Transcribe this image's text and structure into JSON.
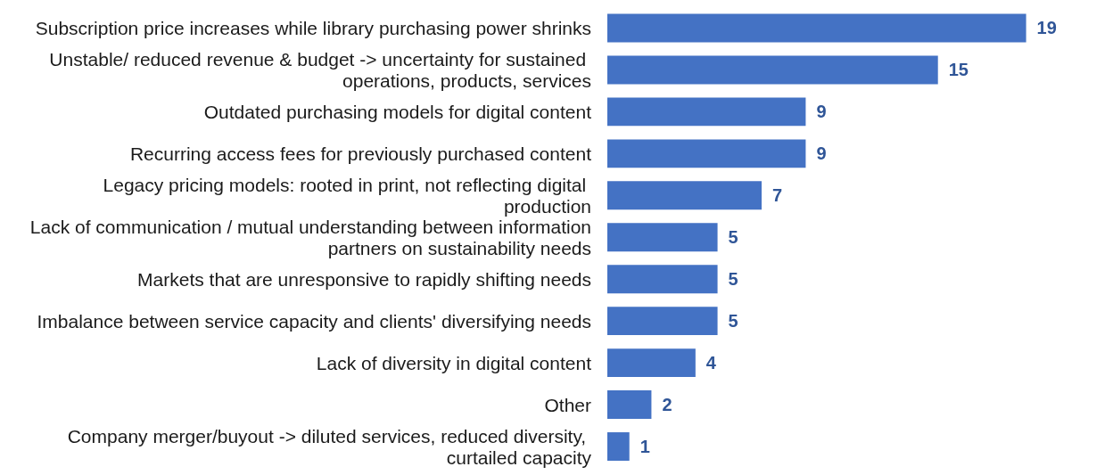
{
  "chart_data": {
    "type": "bar",
    "orientation": "horizontal",
    "color": "#4472c4",
    "data_labels": true,
    "categories": [
      "Subscription price increases while library purchasing power shrinks",
      "Unstable/ reduced revenue & budget -> uncertainty for sustained operations, products, services",
      "Outdated purchasing models for digital content",
      "Recurring access fees for previously purchased content",
      "Legacy pricing models: rooted in print, not reflecting digital production",
      "Lack of communication / mutual understanding between information partners on sustainability needs",
      "Markets that are unresponsive to rapidly shifting needs",
      "Imbalance between service capacity and clients' diversifying needs",
      "Lack of diversity in digital content",
      "Other",
      "Company merger/buyout -> diluted services, reduced diversity, curtailed capacity"
    ],
    "values": [
      19,
      15,
      9,
      9,
      7,
      5,
      5,
      5,
      4,
      2,
      1
    ]
  }
}
